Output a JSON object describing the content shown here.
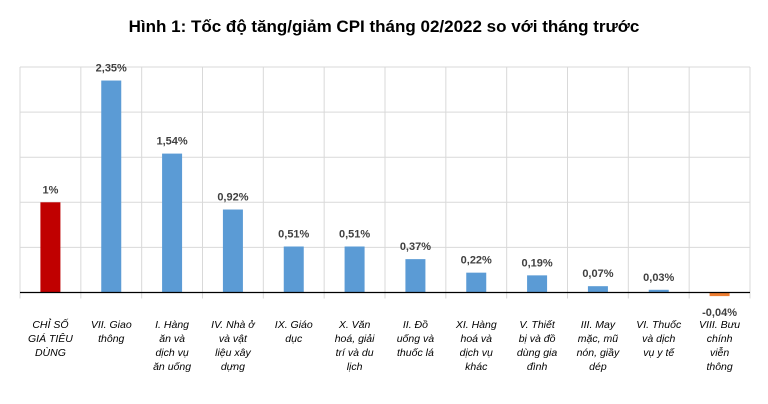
{
  "chart_data": {
    "type": "bar",
    "title": "Hình 1: Tốc độ tăng/giảm CPI tháng 02/2022 so với tháng trước",
    "xlabel": "",
    "ylabel": "",
    "ylim": [
      -0.1,
      2.5
    ],
    "grid": true,
    "legend": "none",
    "categories": [
      [
        "CHỈ SỐ",
        "GIÁ TIÊU",
        "DÙNG"
      ],
      [
        "VII. Giao",
        "thông"
      ],
      [
        "I. Hàng",
        "ăn và",
        "dịch vụ",
        "ăn uống"
      ],
      [
        "IV. Nhà ở",
        "và vật",
        "liệu xây",
        "dựng"
      ],
      [
        "IX. Giáo",
        "dục"
      ],
      [
        "X. Văn",
        "hoá, giải",
        "trí và du",
        "lịch"
      ],
      [
        "II. Đồ",
        "uống và",
        "thuốc lá"
      ],
      [
        "XI. Hàng",
        "hoá và",
        "dịch vụ",
        "khác"
      ],
      [
        "V. Thiết",
        "bị và đồ",
        "dùng gia",
        "đình"
      ],
      [
        "III. May",
        "mặc, mũ",
        "nón, giầy",
        "dép"
      ],
      [
        "VI. Thuốc",
        "và dịch",
        "vụ y tế"
      ],
      [
        "VIII. Bưu",
        "chính",
        "viễn",
        "thông"
      ]
    ],
    "values": [
      1,
      2.35,
      1.54,
      0.92,
      0.51,
      0.51,
      0.37,
      0.22,
      0.19,
      0.07,
      0.03,
      -0.04
    ],
    "data_labels": [
      "1%",
      "2,35%",
      "1,54%",
      "0,92%",
      "0,51%",
      "0,51%",
      "0,37%",
      "0,22%",
      "0,19%",
      "0,07%",
      "0,03%",
      "-0,04%"
    ],
    "colors": {
      "highlight": "#C00000",
      "positive": "#5B9BD5",
      "negative": "#ED7D31",
      "grid": "#D9D9D9",
      "axis": "#000000"
    }
  }
}
